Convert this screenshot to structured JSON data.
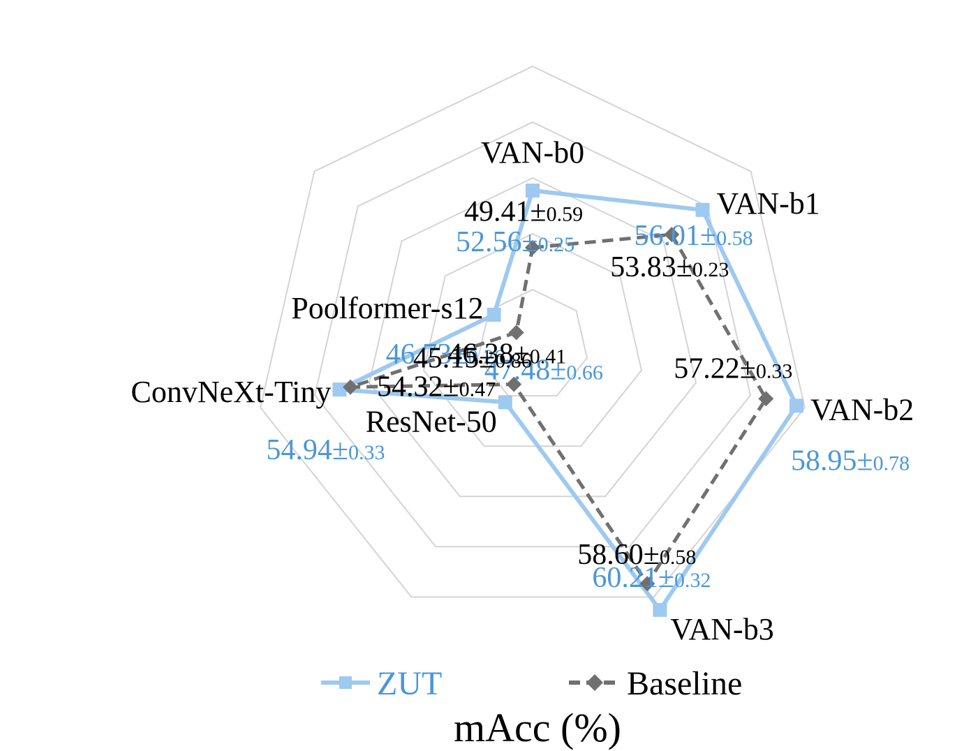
{
  "chart_data": {
    "type": "radar",
    "title": "mAcc (%)",
    "categories": [
      "VAN-b0",
      "VAN-b1",
      "VAN-b2",
      "VAN-b3",
      "ResNet-50",
      "ConvNeXt-Tiny",
      "Poolformer-s12"
    ],
    "series": [
      {
        "name": "ZUT",
        "color": "#9ec9f0",
        "label_color": "#4a97d9",
        "marker": "square",
        "values": [
          52.56,
          56.01,
          58.95,
          60.21,
          47.48,
          54.94,
          46.73
        ],
        "errors": [
          "0.25",
          "0.58",
          "0.78",
          "0.32",
          "0.66",
          "0.33",
          "0.26"
        ],
        "value_texts": [
          "52.56",
          "56.01",
          "58.95",
          "60.21",
          "47.48",
          "54.94",
          "46.73"
        ]
      },
      {
        "name": "Baseline",
        "color": "#707070",
        "label_color": "#000000",
        "marker": "diamond",
        "line_style": "dashed",
        "values": [
          49.41,
          53.83,
          57.22,
          58.6,
          46.38,
          54.32,
          45.15
        ],
        "errors": [
          "0.59",
          "0.23",
          "0.33",
          "0.58",
          "0.41",
          "0.47",
          "0.86"
        ],
        "value_texts": [
          "49.41",
          "53.83",
          "57.22",
          "58.60",
          "46.38",
          "54.32",
          "45.15"
        ]
      }
    ],
    "pm_symbol": "±",
    "grid": true,
    "grid_levels": 5,
    "legend_position": "bottom"
  }
}
